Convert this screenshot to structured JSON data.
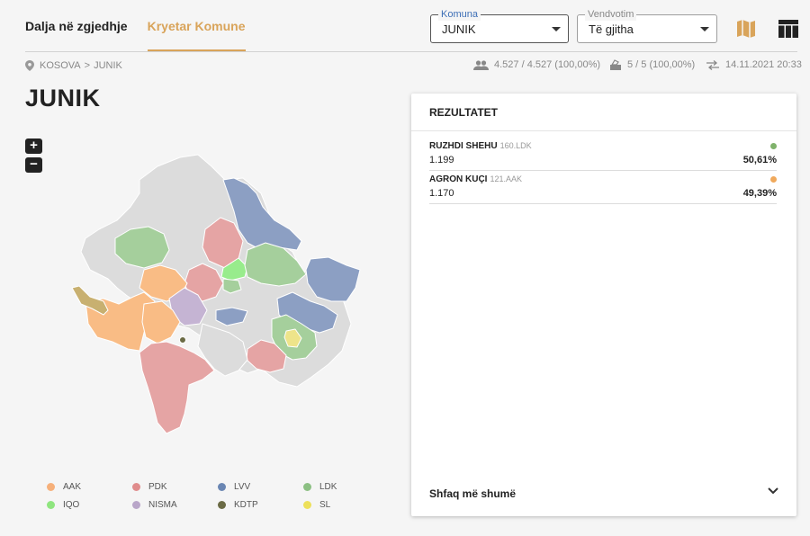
{
  "tabs": [
    {
      "label": "Dalja në zgjedhje"
    },
    {
      "label": "Kryetar Komune"
    }
  ],
  "filters": {
    "komuna": {
      "legend": "Komuna",
      "value": "JUNIK"
    },
    "vendvotim": {
      "legend": "Vendvotim",
      "value": "Të gjitha"
    }
  },
  "breadcrumb": {
    "country": "KOSOVA",
    "separator": ">",
    "municipality": "JUNIK"
  },
  "stats": {
    "voters": "4.527 / 4.527 (100,00%)",
    "stations": "5 / 5 (100,00%)",
    "updated": "14.11.2021 20:33"
  },
  "page_title": "JUNIK",
  "zoom": {
    "in": "+",
    "out": "−"
  },
  "results": {
    "title": "REZULTATET",
    "candidates": [
      {
        "name": "RUZHDI SHEHU",
        "party": "160.LDK",
        "votes": "1.199",
        "percent": "50,61%",
        "color": "#7fb26b"
      },
      {
        "name": "AGRON KUÇI",
        "party": "121.AAK",
        "votes": "1.170",
        "percent": "49,39%",
        "color": "#f0a95c"
      }
    ],
    "show_more": "Shfaq më shumë"
  },
  "legend": [
    {
      "label": "AAK",
      "color": "#f6b07a"
    },
    {
      "label": "PDK",
      "color": "#e08c8c"
    },
    {
      "label": "LVV",
      "color": "#6a86b3"
    },
    {
      "label": "LDK",
      "color": "#8cc083"
    },
    {
      "label": "IQO",
      "color": "#8fe57f"
    },
    {
      "label": "NISMA",
      "color": "#b9a6c9"
    },
    {
      "label": "KDTP",
      "color": "#6b6b45"
    },
    {
      "label": "SL",
      "color": "#ede05a"
    }
  ]
}
